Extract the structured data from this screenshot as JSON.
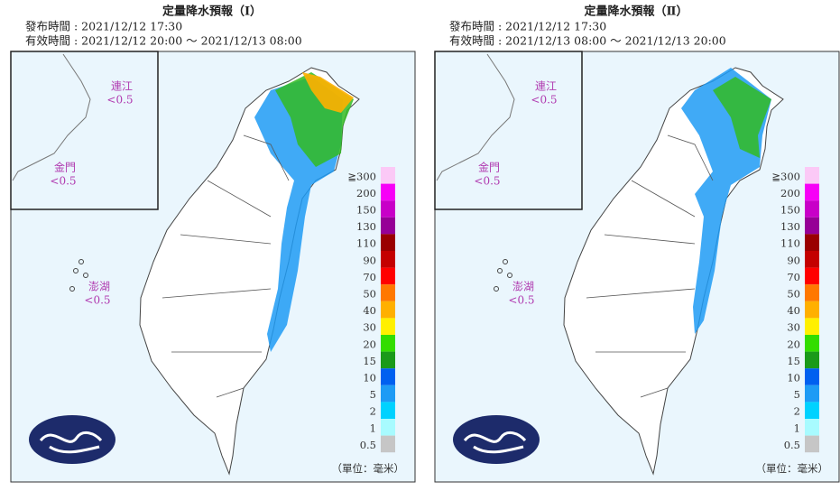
{
  "panels": [
    {
      "title": "定量降水預報（Ⅰ）",
      "issued": "發布時間 : 2021/12/12 17:30",
      "valid": "有效時間 : 2021/12/12 20:00 ～ 2021/12/13 08:00",
      "insets": [
        {
          "name": "連江",
          "value": "<0.5"
        },
        {
          "name": "金門",
          "value": "<0.5"
        },
        {
          "name": "澎湖",
          "value": "<0.5"
        }
      ],
      "unit": "（單位：毫米）"
    },
    {
      "title": "定量降水預報（Ⅱ）",
      "issued": "發布時間 : 2021/12/12 17:30",
      "valid": "有效時間 : 2021/12/13 08:00 ～ 2021/12/13 20:00",
      "insets": [
        {
          "name": "連江",
          "value": "<0.5"
        },
        {
          "name": "金門",
          "value": "<0.5"
        },
        {
          "name": "澎湖",
          "value": "<0.5"
        }
      ],
      "unit": "（單位：毫米）"
    }
  ],
  "legend": {
    "labels": [
      "≧300",
      "200",
      "150",
      "130",
      "110",
      "90",
      "70",
      "50",
      "40",
      "30",
      "20",
      "15",
      "10",
      "5",
      "2",
      "1",
      "0.5"
    ],
    "colors": [
      "#fbc9f6",
      "#f700f7",
      "#c800c8",
      "#960096",
      "#9a0000",
      "#c40000",
      "#ff0000",
      "#ff7800",
      "#ffb000",
      "#fff000",
      "#33dd00",
      "#1a9a1a",
      "#0060f0",
      "#1e9bf5",
      "#00d2ff",
      "#a8fbff",
      "#c6c6c6"
    ]
  }
}
